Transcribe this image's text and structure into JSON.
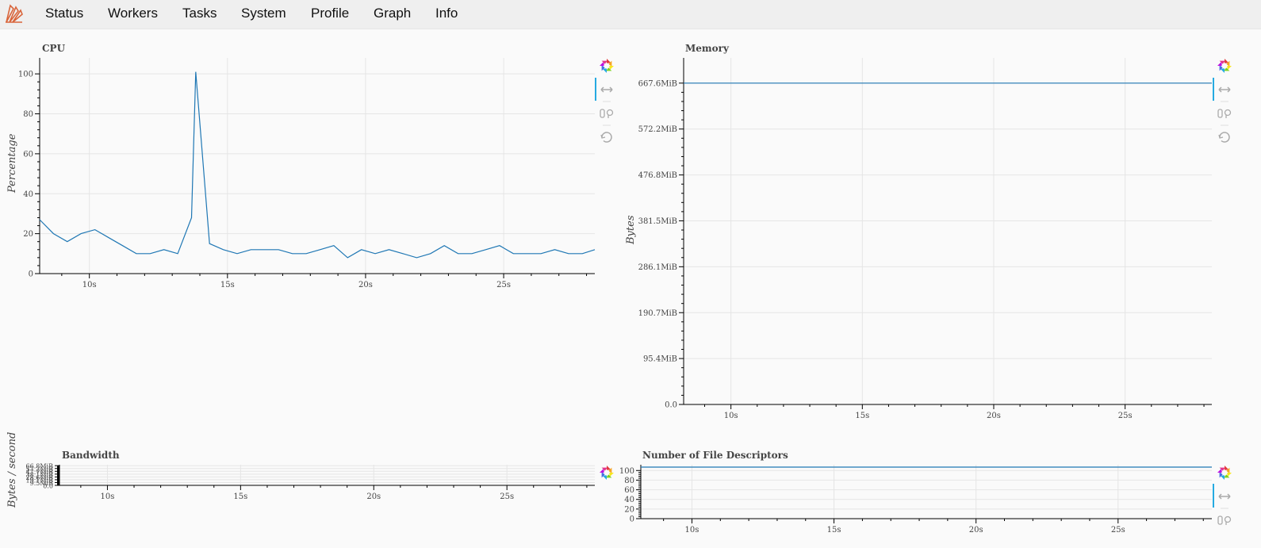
{
  "nav": {
    "logo_icon": "dask-logo-icon",
    "items": [
      {
        "label": "Status"
      },
      {
        "label": "Workers"
      },
      {
        "label": "Tasks"
      },
      {
        "label": "System"
      },
      {
        "label": "Profile"
      },
      {
        "label": "Graph"
      },
      {
        "label": "Info"
      }
    ]
  },
  "colors": {
    "line": "#1f77b4",
    "toolbar_active": "#26aae1",
    "grid": "#e5e5e5"
  },
  "toolbar": {
    "logo_icon": "bokeh-logo-icon",
    "tools": [
      "pan-icon",
      "wheel-zoom-icon",
      "reset-icon"
    ]
  },
  "chart_data": [
    {
      "id": "cpu",
      "type": "line",
      "title": "CPU",
      "ylabel": "Percentage",
      "xlim": [
        8.2,
        28.3
      ],
      "ylim": [
        0,
        108
      ],
      "x_ticks": [
        10,
        15,
        20,
        25
      ],
      "x_tick_labels": [
        "10s",
        "15s",
        "20s",
        "25s"
      ],
      "y_ticks": [
        0,
        20,
        40,
        60,
        80,
        100
      ],
      "y_tick_labels": [
        "0",
        "20",
        "40",
        "60",
        "80",
        "100"
      ],
      "x": [
        8.2,
        8.7,
        9.2,
        9.7,
        10.2,
        10.7,
        11.2,
        11.7,
        12.2,
        12.7,
        13.2,
        13.7,
        13.85,
        14.35,
        14.85,
        15.35,
        15.85,
        16.35,
        16.85,
        17.35,
        17.85,
        18.35,
        18.85,
        19.35,
        19.85,
        20.35,
        20.85,
        21.35,
        21.85,
        22.35,
        22.85,
        23.35,
        23.85,
        24.35,
        24.85,
        25.35,
        25.85,
        26.35,
        26.85,
        27.35,
        27.85,
        28.3
      ],
      "y": [
        27,
        20,
        16,
        20,
        22,
        18,
        14,
        10,
        10,
        12,
        10,
        28,
        101,
        15,
        12,
        10,
        12,
        12,
        12,
        10,
        10,
        12,
        14,
        8,
        12,
        10,
        12,
        10,
        8,
        10,
        14,
        10,
        10,
        12,
        14,
        10,
        10,
        10,
        12,
        10,
        10,
        12
      ]
    },
    {
      "id": "memory",
      "type": "line",
      "title": "Memory",
      "ylabel": "Bytes",
      "xlim": [
        8.2,
        28.3
      ],
      "ylim": [
        0,
        720
      ],
      "x_ticks": [
        10,
        15,
        20,
        25
      ],
      "x_tick_labels": [
        "10s",
        "15s",
        "20s",
        "25s"
      ],
      "y_ticks": [
        0,
        95.4,
        190.7,
        286.1,
        381.5,
        476.8,
        572.2,
        667.6
      ],
      "y_tick_labels": [
        "0.0",
        "95.4MiB",
        "190.7MiB",
        "286.1MiB",
        "381.5MiB",
        "476.8MiB",
        "572.2MiB",
        "667.6MiB"
      ],
      "x": [
        8.2,
        28.3
      ],
      "y": [
        667.6,
        667.6
      ]
    },
    {
      "id": "bandwidth",
      "type": "line",
      "title": "Bandwidth",
      "ylabel": "Bytes / second",
      "xlim": [
        8.2,
        28.3
      ],
      "ylim": [
        0,
        70
      ],
      "x_ticks": [
        10,
        15,
        20,
        25
      ],
      "x_tick_labels": [
        "10s",
        "15s",
        "20s",
        "25s"
      ],
      "y_ticks": [
        0,
        9.5,
        19.1,
        28.6,
        38.1,
        47.7,
        57.2,
        66.8
      ],
      "y_tick_labels": [
        "0.0",
        "9.5MiB",
        "19.1MiB",
        "28.6MiB",
        "38.1MiB",
        "47.7MiB",
        "57.2MiB",
        "66.8MiB"
      ],
      "x": [],
      "y": []
    },
    {
      "id": "fds",
      "type": "line",
      "title": "Number of File Descriptors",
      "ylabel": "",
      "xlim": [
        8.2,
        28.3
      ],
      "ylim": [
        0,
        112
      ],
      "x_ticks": [
        10,
        15,
        20,
        25
      ],
      "x_tick_labels": [
        "10s",
        "15s",
        "20s",
        "25s"
      ],
      "y_ticks": [
        0,
        20,
        40,
        60,
        80,
        100
      ],
      "y_tick_labels": [
        "0",
        "20",
        "40",
        "60",
        "80",
        "100"
      ],
      "x": [
        8.2,
        28.3
      ],
      "y": [
        107,
        107
      ]
    }
  ]
}
